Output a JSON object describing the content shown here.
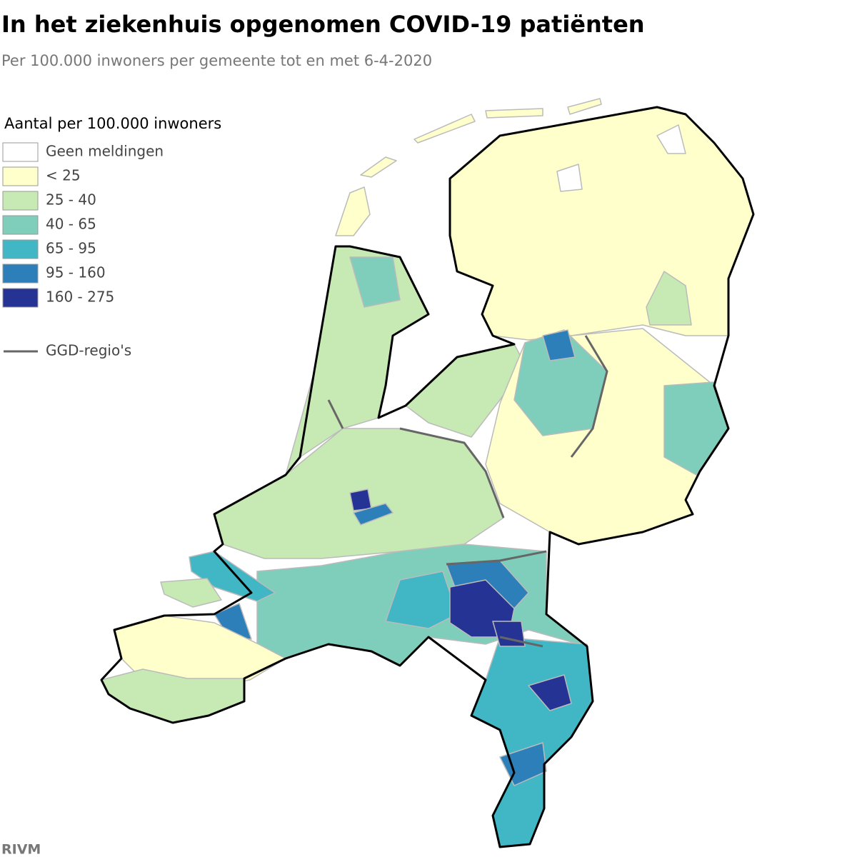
{
  "title": "In het ziekenhuis opgenomen COVID-19 patiënten",
  "subtitle": "Per 100.000 inwoners per gemeente tot en met 6-4-2020",
  "legend": {
    "title": "Aantal per 100.000 inwoners",
    "items": [
      {
        "label": "Geen meldingen",
        "color": "#ffffff"
      },
      {
        "label": "< 25",
        "color": "#ffffcc"
      },
      {
        "label": "25 - 40",
        "color": "#c7e9b4"
      },
      {
        "label": "40 - 65",
        "color": "#7fcdbb"
      },
      {
        "label": "65 - 95",
        "color": "#41b6c4"
      },
      {
        "label": "95 - 160",
        "color": "#2c7fb8"
      },
      {
        "label": "160 - 275",
        "color": "#253494"
      }
    ],
    "boundary": {
      "label": "GGD-regio's",
      "color": "#666666"
    }
  },
  "source": "RIVM"
}
